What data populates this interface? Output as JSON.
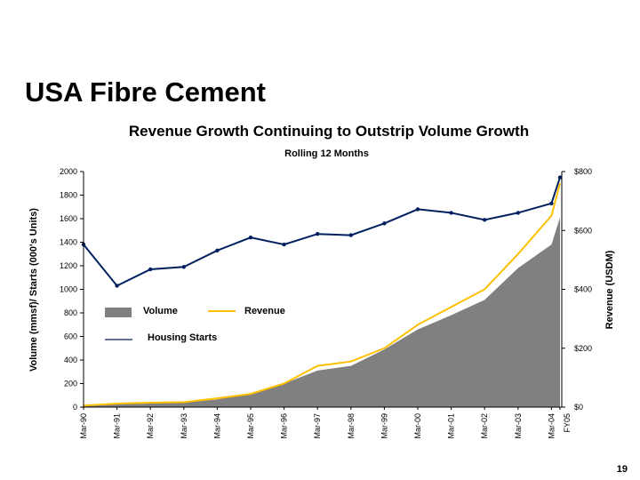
{
  "slide": {
    "title": "USA Fibre Cement",
    "page_number": "19"
  },
  "chart_data": {
    "type": "area",
    "title": "Revenue Growth Continuing to Outstrip Volume Growth",
    "subtitle": "Rolling 12 Months",
    "ylabel_left": "Volume (mmsf)/ Starts (000's Units)",
    "ylabel_right": "Revenue (USDM)",
    "ylim_left": [
      0,
      2000
    ],
    "ylim_right": [
      0,
      800
    ],
    "yticks_left": [
      "0",
      "200",
      "400",
      "600",
      "800",
      "1000",
      "1200",
      "1400",
      "1600",
      "1800",
      "2000"
    ],
    "yticks_right": [
      "$0",
      "$200",
      "$400",
      "$600",
      "$800"
    ],
    "categories": [
      "Mar-90",
      "Mar-91",
      "Mar-92",
      "Mar-93",
      "Mar-94",
      "Mar-95",
      "Mar-96",
      "Mar-97",
      "Mar-98",
      "Mar-99",
      "Mar-00",
      "Mar-01",
      "Mar-02",
      "Mar-03",
      "Mar-04",
      "FY05"
    ],
    "legend": [
      {
        "name": "Volume",
        "color": "#808080",
        "style": "area"
      },
      {
        "name": "Revenue",
        "color": "#FFC000",
        "style": "line"
      },
      {
        "name": "Housing Starts",
        "color": "#002060",
        "style": "line"
      }
    ],
    "series": [
      {
        "name": "Volume",
        "axis": "left",
        "values": [
          10,
          25,
          30,
          40,
          65,
          120,
          200,
          310,
          350,
          490,
          660,
          780,
          910,
          1180,
          1380,
          1610
        ]
      },
      {
        "name": "Revenue",
        "axis": "right",
        "values": [
          5,
          12,
          15,
          17,
          30,
          45,
          80,
          140,
          155,
          200,
          280,
          340,
          400,
          520,
          650,
          760
        ]
      },
      {
        "name": "Housing Starts",
        "axis": "left",
        "values": [
          1380,
          1030,
          1170,
          1190,
          1330,
          1440,
          1380,
          1470,
          1460,
          1560,
          1680,
          1650,
          1590,
          1650,
          1730,
          1950
        ]
      }
    ],
    "grid": false,
    "legend_placement": "left-middle"
  }
}
